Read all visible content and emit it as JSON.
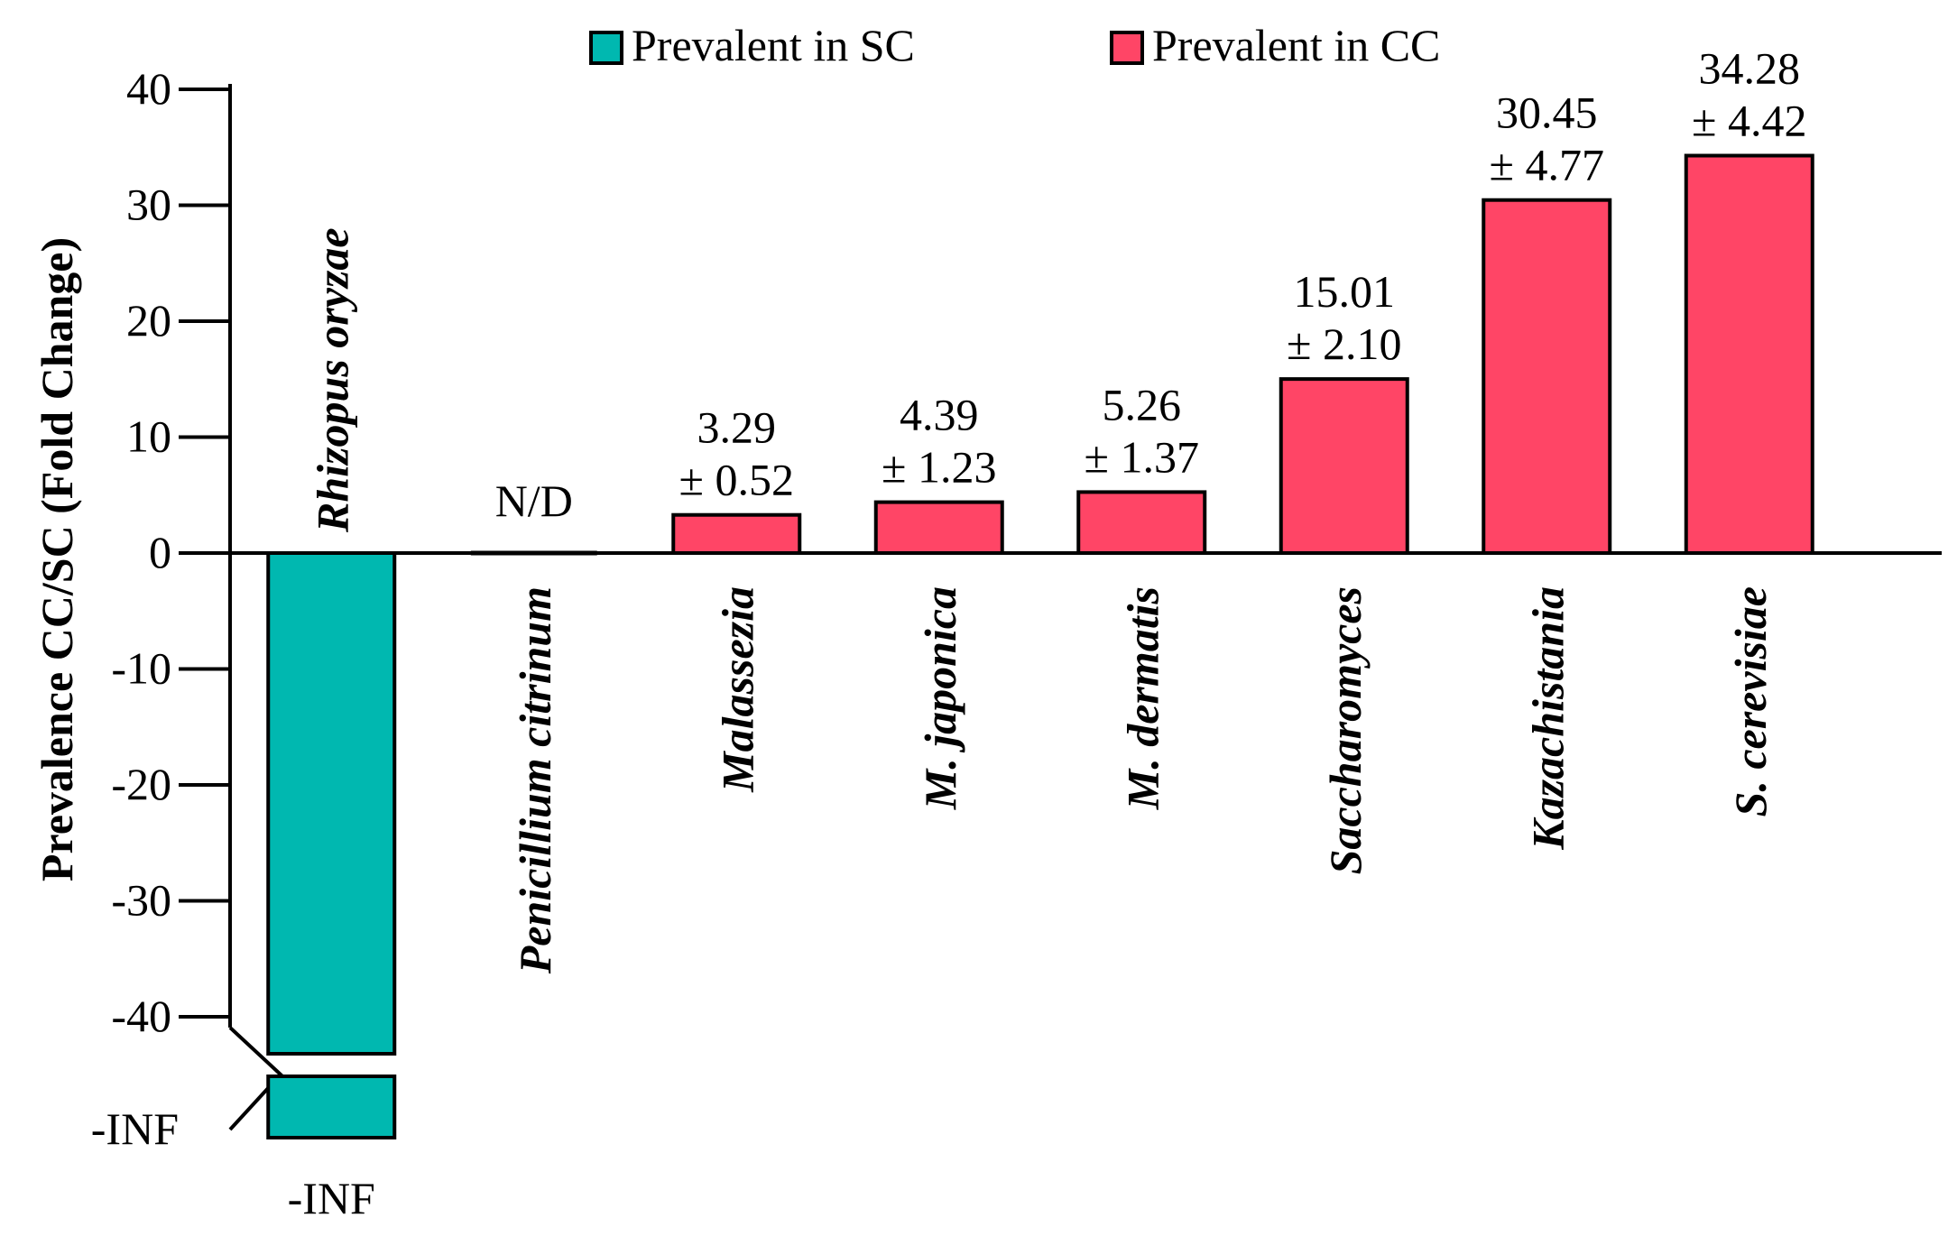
{
  "chart_data": {
    "type": "bar",
    "ylabel": "Prevalence CC/SC (Fold Change)",
    "ylim": [
      -40,
      40
    ],
    "yticks": [
      "40",
      "30",
      "20",
      "10",
      "0",
      "-10",
      "-20",
      "-30",
      "-40"
    ],
    "ybreak_label": "-INF",
    "legend": [
      {
        "name": "Prevalent in SC",
        "color": "#00b8b0"
      },
      {
        "name": "Prevalent in CC",
        "color": "#ff4566"
      }
    ],
    "categories": [
      {
        "name": "Rhizopus oryzae",
        "value": "-INF",
        "numeric": null,
        "group": "SC",
        "label_line1": "-INF",
        "label_line2": ""
      },
      {
        "name": "Penicillium citrinum",
        "value": "N/D",
        "numeric": 0,
        "group": "none",
        "label_line1": "N/D",
        "label_line2": ""
      },
      {
        "name": "Malassezia",
        "value": 3.29,
        "numeric": 3.29,
        "group": "CC",
        "label_line1": "3.29",
        "label_line2": "± 0.52"
      },
      {
        "name": "M. japonica",
        "value": 4.39,
        "numeric": 4.39,
        "group": "CC",
        "label_line1": "4.39",
        "label_line2": "± 1.23"
      },
      {
        "name": "M. dermatis",
        "value": 5.26,
        "numeric": 5.26,
        "group": "CC",
        "label_line1": "5.26",
        "label_line2": "± 1.37"
      },
      {
        "name": "Saccharomyces",
        "value": 15.01,
        "numeric": 15.01,
        "group": "CC",
        "label_line1": "15.01",
        "label_line2": "± 2.10"
      },
      {
        "name": "Kazachistania",
        "value": 30.45,
        "numeric": 30.45,
        "group": "CC",
        "label_line1": "30.45",
        "label_line2": "± 4.77"
      },
      {
        "name": "S. cerevisiae",
        "value": 34.28,
        "numeric": 34.28,
        "group": "CC",
        "label_line1": "34.28",
        "label_line2": "± 4.42"
      }
    ]
  }
}
